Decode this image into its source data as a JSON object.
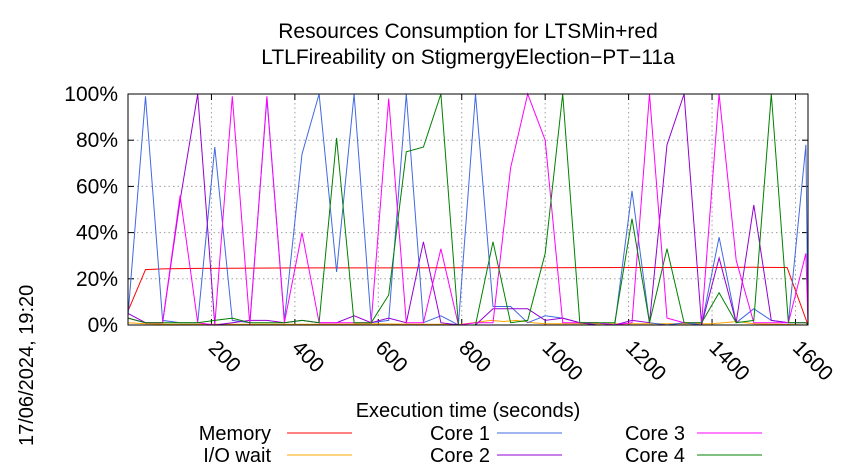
{
  "chart_data": {
    "type": "line",
    "title": "Resources Consumption for LTSMin+red",
    "subtitle": "LTLFireability on StigmergyElection−PT−11a",
    "xlabel": "Execution time (seconds)",
    "ylabel": "",
    "timestamp": "17/06/2024, 19:20",
    "xlim": [
      0,
      1630
    ],
    "ylim": [
      0,
      100
    ],
    "xticks": [
      200,
      400,
      600,
      800,
      1000,
      1200,
      1400,
      1600
    ],
    "xtick_labels": [
      "200",
      "400",
      "600",
      "800",
      "1000",
      "1200",
      "1400",
      "1600"
    ],
    "yticks": [
      0,
      20,
      40,
      60,
      80,
      100
    ],
    "ytick_labels": [
      "0%",
      "20%",
      "40%",
      "60%",
      "80%",
      "100%"
    ],
    "grid": true,
    "legend_position": "bottom",
    "series": [
      {
        "name": "Memory",
        "color": "#ff0000",
        "points": [
          [
            0,
            6
          ],
          [
            42,
            24
          ],
          [
            83,
            24.3
          ],
          [
            125,
            24.4
          ],
          [
            167,
            24.5
          ],
          [
            250,
            24.6
          ],
          [
            400,
            24.7
          ],
          [
            600,
            24.7
          ],
          [
            800,
            24.8
          ],
          [
            1000,
            24.8
          ],
          [
            1200,
            24.9
          ],
          [
            1400,
            24.9
          ],
          [
            1500,
            25
          ],
          [
            1580,
            24.9
          ],
          [
            1630,
            0
          ]
        ]
      },
      {
        "name": "I/O wait",
        "color": "#ffa500",
        "points": [
          [
            0,
            1
          ],
          [
            42,
            0.5
          ],
          [
            100,
            0.3
          ],
          [
            200,
            0.3
          ],
          [
            300,
            0.3
          ],
          [
            400,
            0.3
          ],
          [
            500,
            0.3
          ],
          [
            600,
            0.5
          ],
          [
            700,
            0.3
          ],
          [
            800,
            0.3
          ],
          [
            870,
            2
          ],
          [
            900,
            1.5
          ],
          [
            930,
            2
          ],
          [
            970,
            1
          ],
          [
            1000,
            0.5
          ],
          [
            1100,
            0.5
          ],
          [
            1200,
            0.5
          ],
          [
            1300,
            0.5
          ],
          [
            1400,
            0.5
          ],
          [
            1460,
            1.5
          ],
          [
            1500,
            0.5
          ],
          [
            1560,
            0.3
          ],
          [
            1630,
            0
          ]
        ]
      },
      {
        "name": "Core 1",
        "color": "#4169e1",
        "points": [
          [
            0,
            4
          ],
          [
            42,
            99
          ],
          [
            83,
            2
          ],
          [
            125,
            1
          ],
          [
            167,
            1
          ],
          [
            208,
            77
          ],
          [
            250,
            2
          ],
          [
            292,
            1
          ],
          [
            333,
            98
          ],
          [
            375,
            2
          ],
          [
            417,
            74
          ],
          [
            458,
            100
          ],
          [
            500,
            23
          ],
          [
            542,
            100
          ],
          [
            583,
            1
          ],
          [
            625,
            2
          ],
          [
            667,
            100
          ],
          [
            708,
            1
          ],
          [
            750,
            4
          ],
          [
            792,
            0
          ],
          [
            833,
            100
          ],
          [
            875,
            8
          ],
          [
            917,
            8
          ],
          [
            958,
            1
          ],
          [
            1000,
            4
          ],
          [
            1042,
            3
          ],
          [
            1083,
            1
          ],
          [
            1125,
            1
          ],
          [
            1167,
            0
          ],
          [
            1208,
            58
          ],
          [
            1250,
            1
          ],
          [
            1292,
            0
          ],
          [
            1333,
            1
          ],
          [
            1375,
            0
          ],
          [
            1417,
            38
          ],
          [
            1458,
            1
          ],
          [
            1500,
            7
          ],
          [
            1542,
            2
          ],
          [
            1583,
            1
          ],
          [
            1625,
            78
          ],
          [
            1640,
            1
          ]
        ]
      },
      {
        "name": "Core 2",
        "color": "#9400d3",
        "points": [
          [
            0,
            5
          ],
          [
            42,
            1
          ],
          [
            83,
            1
          ],
          [
            125,
            54
          ],
          [
            167,
            100
          ],
          [
            208,
            0
          ],
          [
            250,
            1
          ],
          [
            292,
            2
          ],
          [
            333,
            2
          ],
          [
            375,
            1
          ],
          [
            417,
            2
          ],
          [
            458,
            1
          ],
          [
            500,
            1
          ],
          [
            542,
            4
          ],
          [
            583,
            1
          ],
          [
            625,
            3
          ],
          [
            667,
            1
          ],
          [
            708,
            36
          ],
          [
            750,
            1
          ],
          [
            792,
            0
          ],
          [
            833,
            0
          ],
          [
            875,
            7
          ],
          [
            917,
            7
          ],
          [
            958,
            7
          ],
          [
            1000,
            2
          ],
          [
            1042,
            3
          ],
          [
            1083,
            1
          ],
          [
            1125,
            0
          ],
          [
            1167,
            0
          ],
          [
            1208,
            2
          ],
          [
            1250,
            1
          ],
          [
            1292,
            78
          ],
          [
            1333,
            100
          ],
          [
            1375,
            0
          ],
          [
            1417,
            29
          ],
          [
            1458,
            1
          ],
          [
            1500,
            52
          ],
          [
            1542,
            2
          ],
          [
            1583,
            1
          ],
          [
            1625,
            1
          ],
          [
            1640,
            0
          ]
        ]
      },
      {
        "name": "Core 3",
        "color": "#ff00ff",
        "points": [
          [
            0,
            3
          ],
          [
            42,
            1
          ],
          [
            83,
            1
          ],
          [
            125,
            56
          ],
          [
            167,
            1
          ],
          [
            208,
            0
          ],
          [
            250,
            99
          ],
          [
            292,
            0
          ],
          [
            333,
            99
          ],
          [
            375,
            1
          ],
          [
            417,
            40
          ],
          [
            458,
            1
          ],
          [
            500,
            1
          ],
          [
            542,
            1
          ],
          [
            583,
            1
          ],
          [
            625,
            98
          ],
          [
            667,
            1
          ],
          [
            708,
            1
          ],
          [
            750,
            33
          ],
          [
            792,
            0
          ],
          [
            833,
            1
          ],
          [
            875,
            1
          ],
          [
            917,
            68
          ],
          [
            958,
            100
          ],
          [
            1000,
            80
          ],
          [
            1042,
            1
          ],
          [
            1083,
            1
          ],
          [
            1125,
            1
          ],
          [
            1167,
            0
          ],
          [
            1208,
            1
          ],
          [
            1250,
            100
          ],
          [
            1292,
            3
          ],
          [
            1333,
            1
          ],
          [
            1375,
            1
          ],
          [
            1417,
            100
          ],
          [
            1458,
            28
          ],
          [
            1500,
            1
          ],
          [
            1542,
            1
          ],
          [
            1583,
            1
          ],
          [
            1625,
            31
          ],
          [
            1640,
            0
          ]
        ]
      },
      {
        "name": "Core 4",
        "color": "#008000",
        "points": [
          [
            0,
            3
          ],
          [
            42,
            1
          ],
          [
            83,
            1
          ],
          [
            125,
            1
          ],
          [
            167,
            1
          ],
          [
            208,
            2
          ],
          [
            250,
            3
          ],
          [
            292,
            1
          ],
          [
            333,
            1
          ],
          [
            375,
            1
          ],
          [
            417,
            2
          ],
          [
            458,
            1
          ],
          [
            500,
            81
          ],
          [
            542,
            1
          ],
          [
            583,
            1
          ],
          [
            625,
            13
          ],
          [
            667,
            75
          ],
          [
            708,
            77
          ],
          [
            750,
            100
          ],
          [
            792,
            0
          ],
          [
            833,
            0
          ],
          [
            875,
            36
          ],
          [
            917,
            1
          ],
          [
            958,
            2
          ],
          [
            1000,
            31
          ],
          [
            1042,
            100
          ],
          [
            1083,
            1
          ],
          [
            1125,
            1
          ],
          [
            1167,
            1
          ],
          [
            1208,
            46
          ],
          [
            1250,
            1
          ],
          [
            1292,
            33
          ],
          [
            1333,
            1
          ],
          [
            1375,
            1
          ],
          [
            1417,
            14
          ],
          [
            1458,
            1
          ],
          [
            1500,
            2
          ],
          [
            1542,
            100
          ],
          [
            1583,
            1
          ],
          [
            1625,
            1
          ],
          [
            1640,
            0
          ]
        ]
      }
    ]
  }
}
